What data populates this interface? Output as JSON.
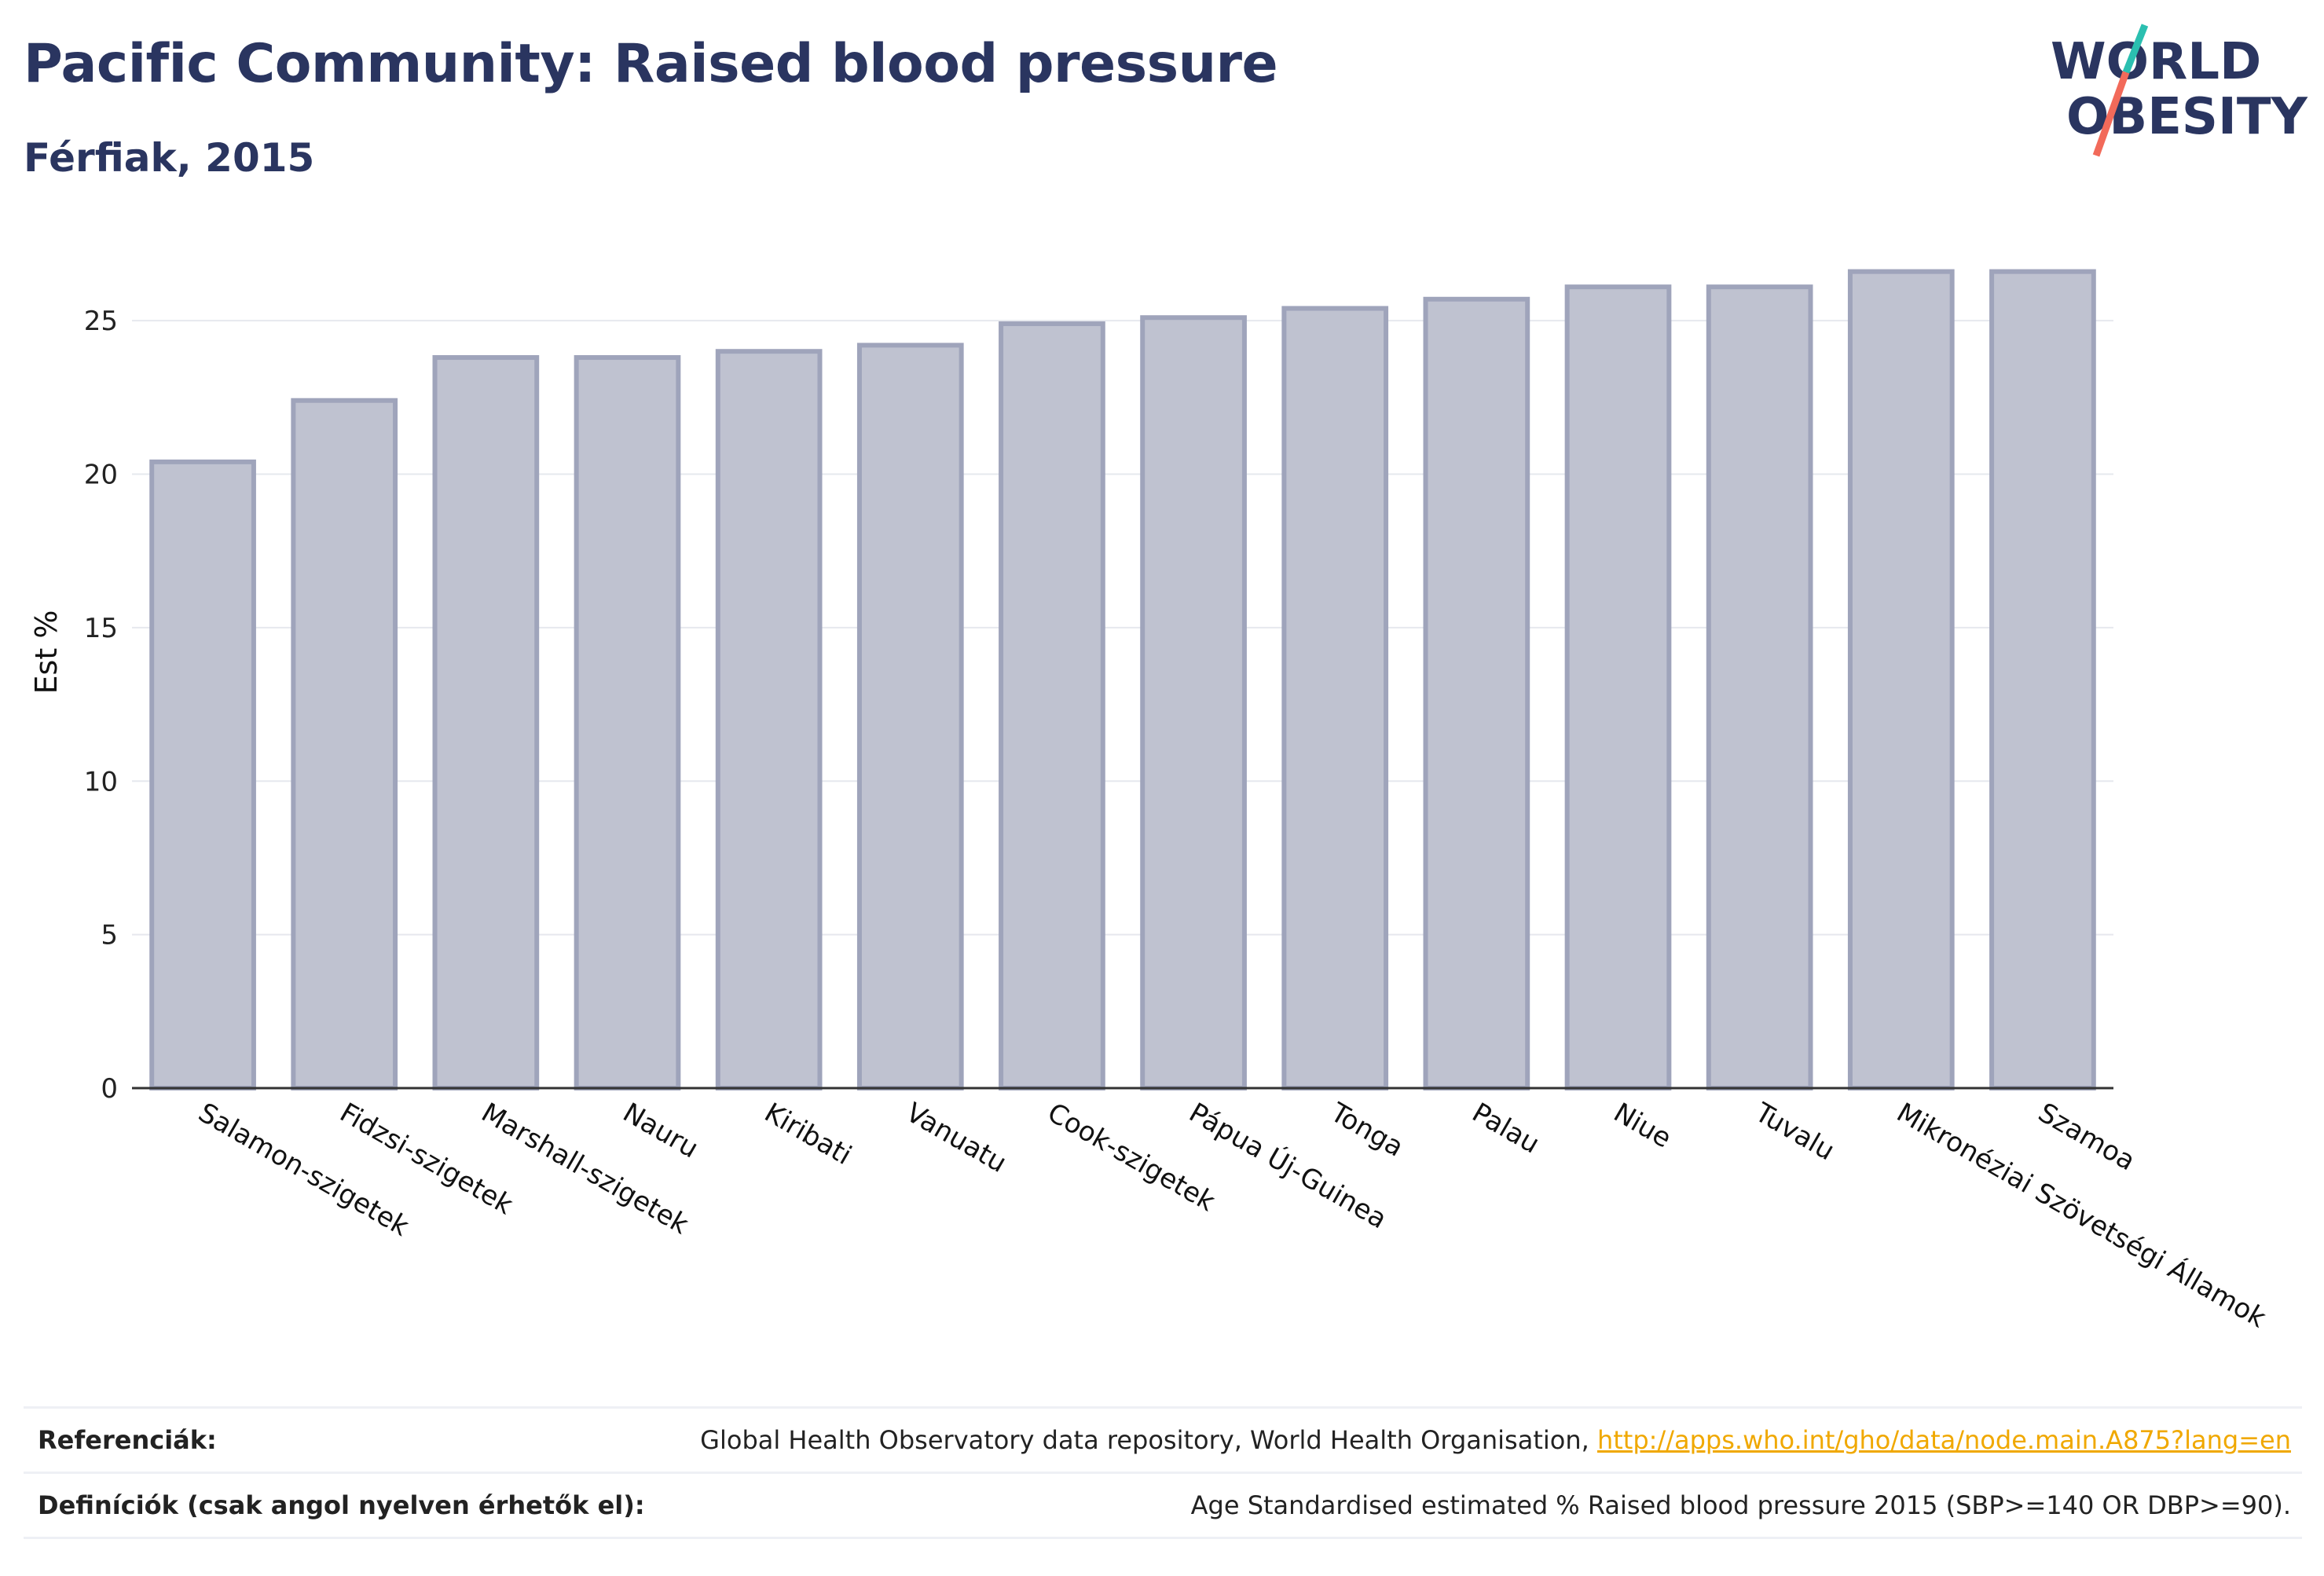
{
  "header": {
    "title": "Pacific Community: Raised blood pressure",
    "subtitle": "Férfiak, 2015"
  },
  "logo": {
    "line1": "WORLD",
    "line2": "OBESITY",
    "accent_colors": [
      "#2bbfb0",
      "#f26a5a"
    ]
  },
  "chart_data": {
    "type": "bar",
    "title": "",
    "xlabel": "",
    "ylabel": "Est %",
    "categories": [
      "Salamon-szigetek",
      "Fidzsi-szigetek",
      "Marshall-szigetek",
      "Nauru",
      "Kiribati",
      "Vanuatu",
      "Cook-szigetek",
      "Pápua Új-Guinea",
      "Tonga",
      "Palau",
      "Niue",
      "Tuvalu",
      "Mikronéziai Szövetségi Államok",
      "Szamoa"
    ],
    "values": [
      20.4,
      22.4,
      23.8,
      23.8,
      24.0,
      24.2,
      24.9,
      25.1,
      25.4,
      25.7,
      26.1,
      26.1,
      26.6,
      26.6
    ],
    "ylim": [
      0,
      27
    ],
    "yticks": [
      0,
      5,
      10,
      15,
      20,
      25
    ],
    "grid": true,
    "bar_fill": "#bfc2d0",
    "bar_stroke": "#9fa4bb"
  },
  "footer": {
    "references_label": "Referenciák:",
    "references_text": "Global Health Observatory data repository, World Health Organisation, ",
    "references_link": "http://apps.who.int/gho/data/node.main.A875?lang=en",
    "definitions_label": "Definíciók (csak angol nyelven érhetők el):",
    "definitions_text": "Age Standardised estimated % Raised blood pressure 2015 (SBP>=140 OR DBP>=90)."
  }
}
